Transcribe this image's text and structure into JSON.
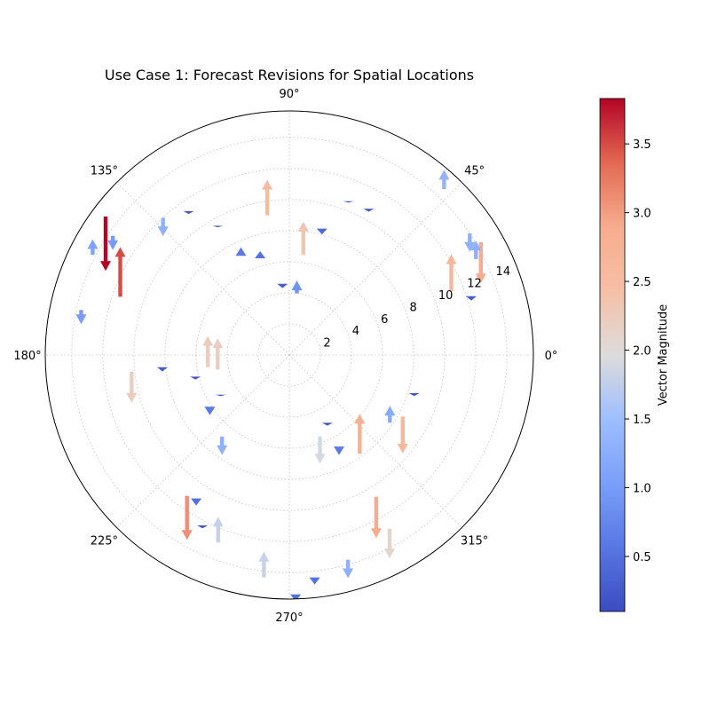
{
  "chart_data": {
    "type": "quiver-polar",
    "title": "Use Case 1: Forecast Revisions for Spatial Locations",
    "angular_ticks": [
      "0°",
      "45°",
      "90°",
      "135°",
      "180°",
      "225°",
      "270°",
      "315°"
    ],
    "angular_tick_values_deg": [
      0,
      45,
      90,
      135,
      180,
      225,
      270,
      315
    ],
    "radial_ticks": [
      "2",
      "4",
      "6",
      "8",
      "10",
      "12",
      "14"
    ],
    "radial_tick_values": [
      2,
      4,
      6,
      8,
      10,
      12,
      14
    ],
    "rlim": [
      0,
      15.7
    ],
    "radial_label_angle_deg": 22.5,
    "grid": true,
    "colormap": "coolwarm",
    "colorbar": {
      "label": "Vector Magnitude",
      "ticks": [
        "0.5",
        "1.0",
        "1.5",
        "2.0",
        "2.5",
        "3.0",
        "3.5"
      ],
      "tick_values": [
        0.5,
        1.0,
        1.5,
        2.0,
        2.5,
        3.0,
        3.5
      ],
      "range": [
        0.1,
        3.83
      ]
    },
    "vectors": [
      {
        "theta_deg": 30.5,
        "r": 14.3,
        "u": 0,
        "v": -2.9
      },
      {
        "theta_deg": 34.0,
        "r": 14.0,
        "u": 0,
        "v": -1.3
      },
      {
        "theta_deg": 47.0,
        "r": 14.6,
        "u": 0,
        "v": 1.35
      },
      {
        "theta_deg": 27.2,
        "r": 13.5,
        "u": 0,
        "v": 1.3
      },
      {
        "theta_deg": 17.9,
        "r": 12.3,
        "u": 0,
        "v": -0.3
      },
      {
        "theta_deg": 21.5,
        "r": 11.2,
        "u": 0,
        "v": 2.6
      },
      {
        "theta_deg": 61.5,
        "r": 10.7,
        "u": 0,
        "v": -0.2
      },
      {
        "theta_deg": 69.0,
        "r": 10.6,
        "u": 0,
        "v": -0.1
      },
      {
        "theta_deg": 75.5,
        "r": 8.4,
        "u": 0,
        "v": -0.4
      },
      {
        "theta_deg": 82.0,
        "r": 6.5,
        "u": 0,
        "v": 2.35
      },
      {
        "theta_deg": 83.0,
        "r": 4.0,
        "u": 0,
        "v": 0.9
      },
      {
        "theta_deg": 95.5,
        "r": 4.6,
        "u": 0,
        "v": -0.3
      },
      {
        "theta_deg": 106.8,
        "r": 6.5,
        "u": 0,
        "v": 0.5
      },
      {
        "theta_deg": 99.0,
        "r": 9.1,
        "u": 0,
        "v": 2.5
      },
      {
        "theta_deg": 116.0,
        "r": 7.1,
        "u": 0,
        "v": 0.6
      },
      {
        "theta_deg": 119.0,
        "r": 9.5,
        "u": 0,
        "v": -0.1
      },
      {
        "theta_deg": 125.0,
        "r": 11.3,
        "u": 0,
        "v": -0.2
      },
      {
        "theta_deg": 132.6,
        "r": 12.0,
        "u": 0,
        "v": -1.3
      },
      {
        "theta_deg": 143.0,
        "r": 14.8,
        "u": 0,
        "v": -3.83
      },
      {
        "theta_deg": 146.0,
        "r": 13.7,
        "u": 0,
        "v": -1.0
      },
      {
        "theta_deg": 153.0,
        "r": 14.2,
        "u": 0,
        "v": 1.1
      },
      {
        "theta_deg": 161.0,
        "r": 11.5,
        "u": 0,
        "v": 3.5
      },
      {
        "theta_deg": 167.8,
        "r": 13.7,
        "u": 0,
        "v": -1.0
      },
      {
        "theta_deg": 186.0,
        "r": 10.2,
        "u": 0,
        "v": -2.2
      },
      {
        "theta_deg": 185.5,
        "r": 8.2,
        "u": 0,
        "v": -0.3
      },
      {
        "theta_deg": 188.5,
        "r": 5.3,
        "u": 0,
        "v": 2.2
      },
      {
        "theta_deg": 191.5,
        "r": 4.7,
        "u": 0,
        "v": 2.2
      },
      {
        "theta_deg": 193.0,
        "r": 6.2,
        "u": 0,
        "v": -0.2
      },
      {
        "theta_deg": 210.0,
        "r": 5.1,
        "u": 0,
        "v": -0.1
      },
      {
        "theta_deg": 213.0,
        "r": 6.1,
        "u": 0,
        "v": -0.6
      },
      {
        "theta_deg": 230.5,
        "r": 6.8,
        "u": 0,
        "v": -1.3
      },
      {
        "theta_deg": 234.0,
        "r": 11.2,
        "u": 0,
        "v": -3.1
      },
      {
        "theta_deg": 237.0,
        "r": 11.0,
        "u": 0,
        "v": -0.5
      },
      {
        "theta_deg": 243.0,
        "r": 12.3,
        "u": 0,
        "v": -0.2
      },
      {
        "theta_deg": 249.2,
        "r": 12.9,
        "u": 0,
        "v": 1.8
      },
      {
        "theta_deg": 263.5,
        "r": 14.4,
        "u": 0,
        "v": 1.8
      },
      {
        "theta_deg": 271.5,
        "r": 15.4,
        "u": 0,
        "v": -0.5
      },
      {
        "theta_deg": 276.5,
        "r": 14.4,
        "u": 0,
        "v": -0.5
      },
      {
        "theta_deg": 286.0,
        "r": 13.7,
        "u": 0,
        "v": -1.3
      },
      {
        "theta_deg": 300.0,
        "r": 12.9,
        "u": 0,
        "v": -2.1
      },
      {
        "theta_deg": 301.5,
        "r": 10.7,
        "u": 0,
        "v": -2.9
      },
      {
        "theta_deg": 305.5,
        "r": 7.8,
        "u": 0,
        "v": 2.8
      },
      {
        "theta_deg": 290.6,
        "r": 5.6,
        "u": 0,
        "v": -1.9
      },
      {
        "theta_deg": 299.3,
        "r": 5.0,
        "u": 0,
        "v": -0.2
      },
      {
        "theta_deg": 298.5,
        "r": 6.7,
        "u": 0,
        "v": -0.6
      },
      {
        "theta_deg": 326.0,
        "r": 7.8,
        "u": 0,
        "v": 1.2
      },
      {
        "theta_deg": 331.5,
        "r": 8.3,
        "u": 0,
        "v": -2.6
      },
      {
        "theta_deg": 343.0,
        "r": 8.4,
        "u": 0,
        "v": -0.2
      }
    ]
  }
}
